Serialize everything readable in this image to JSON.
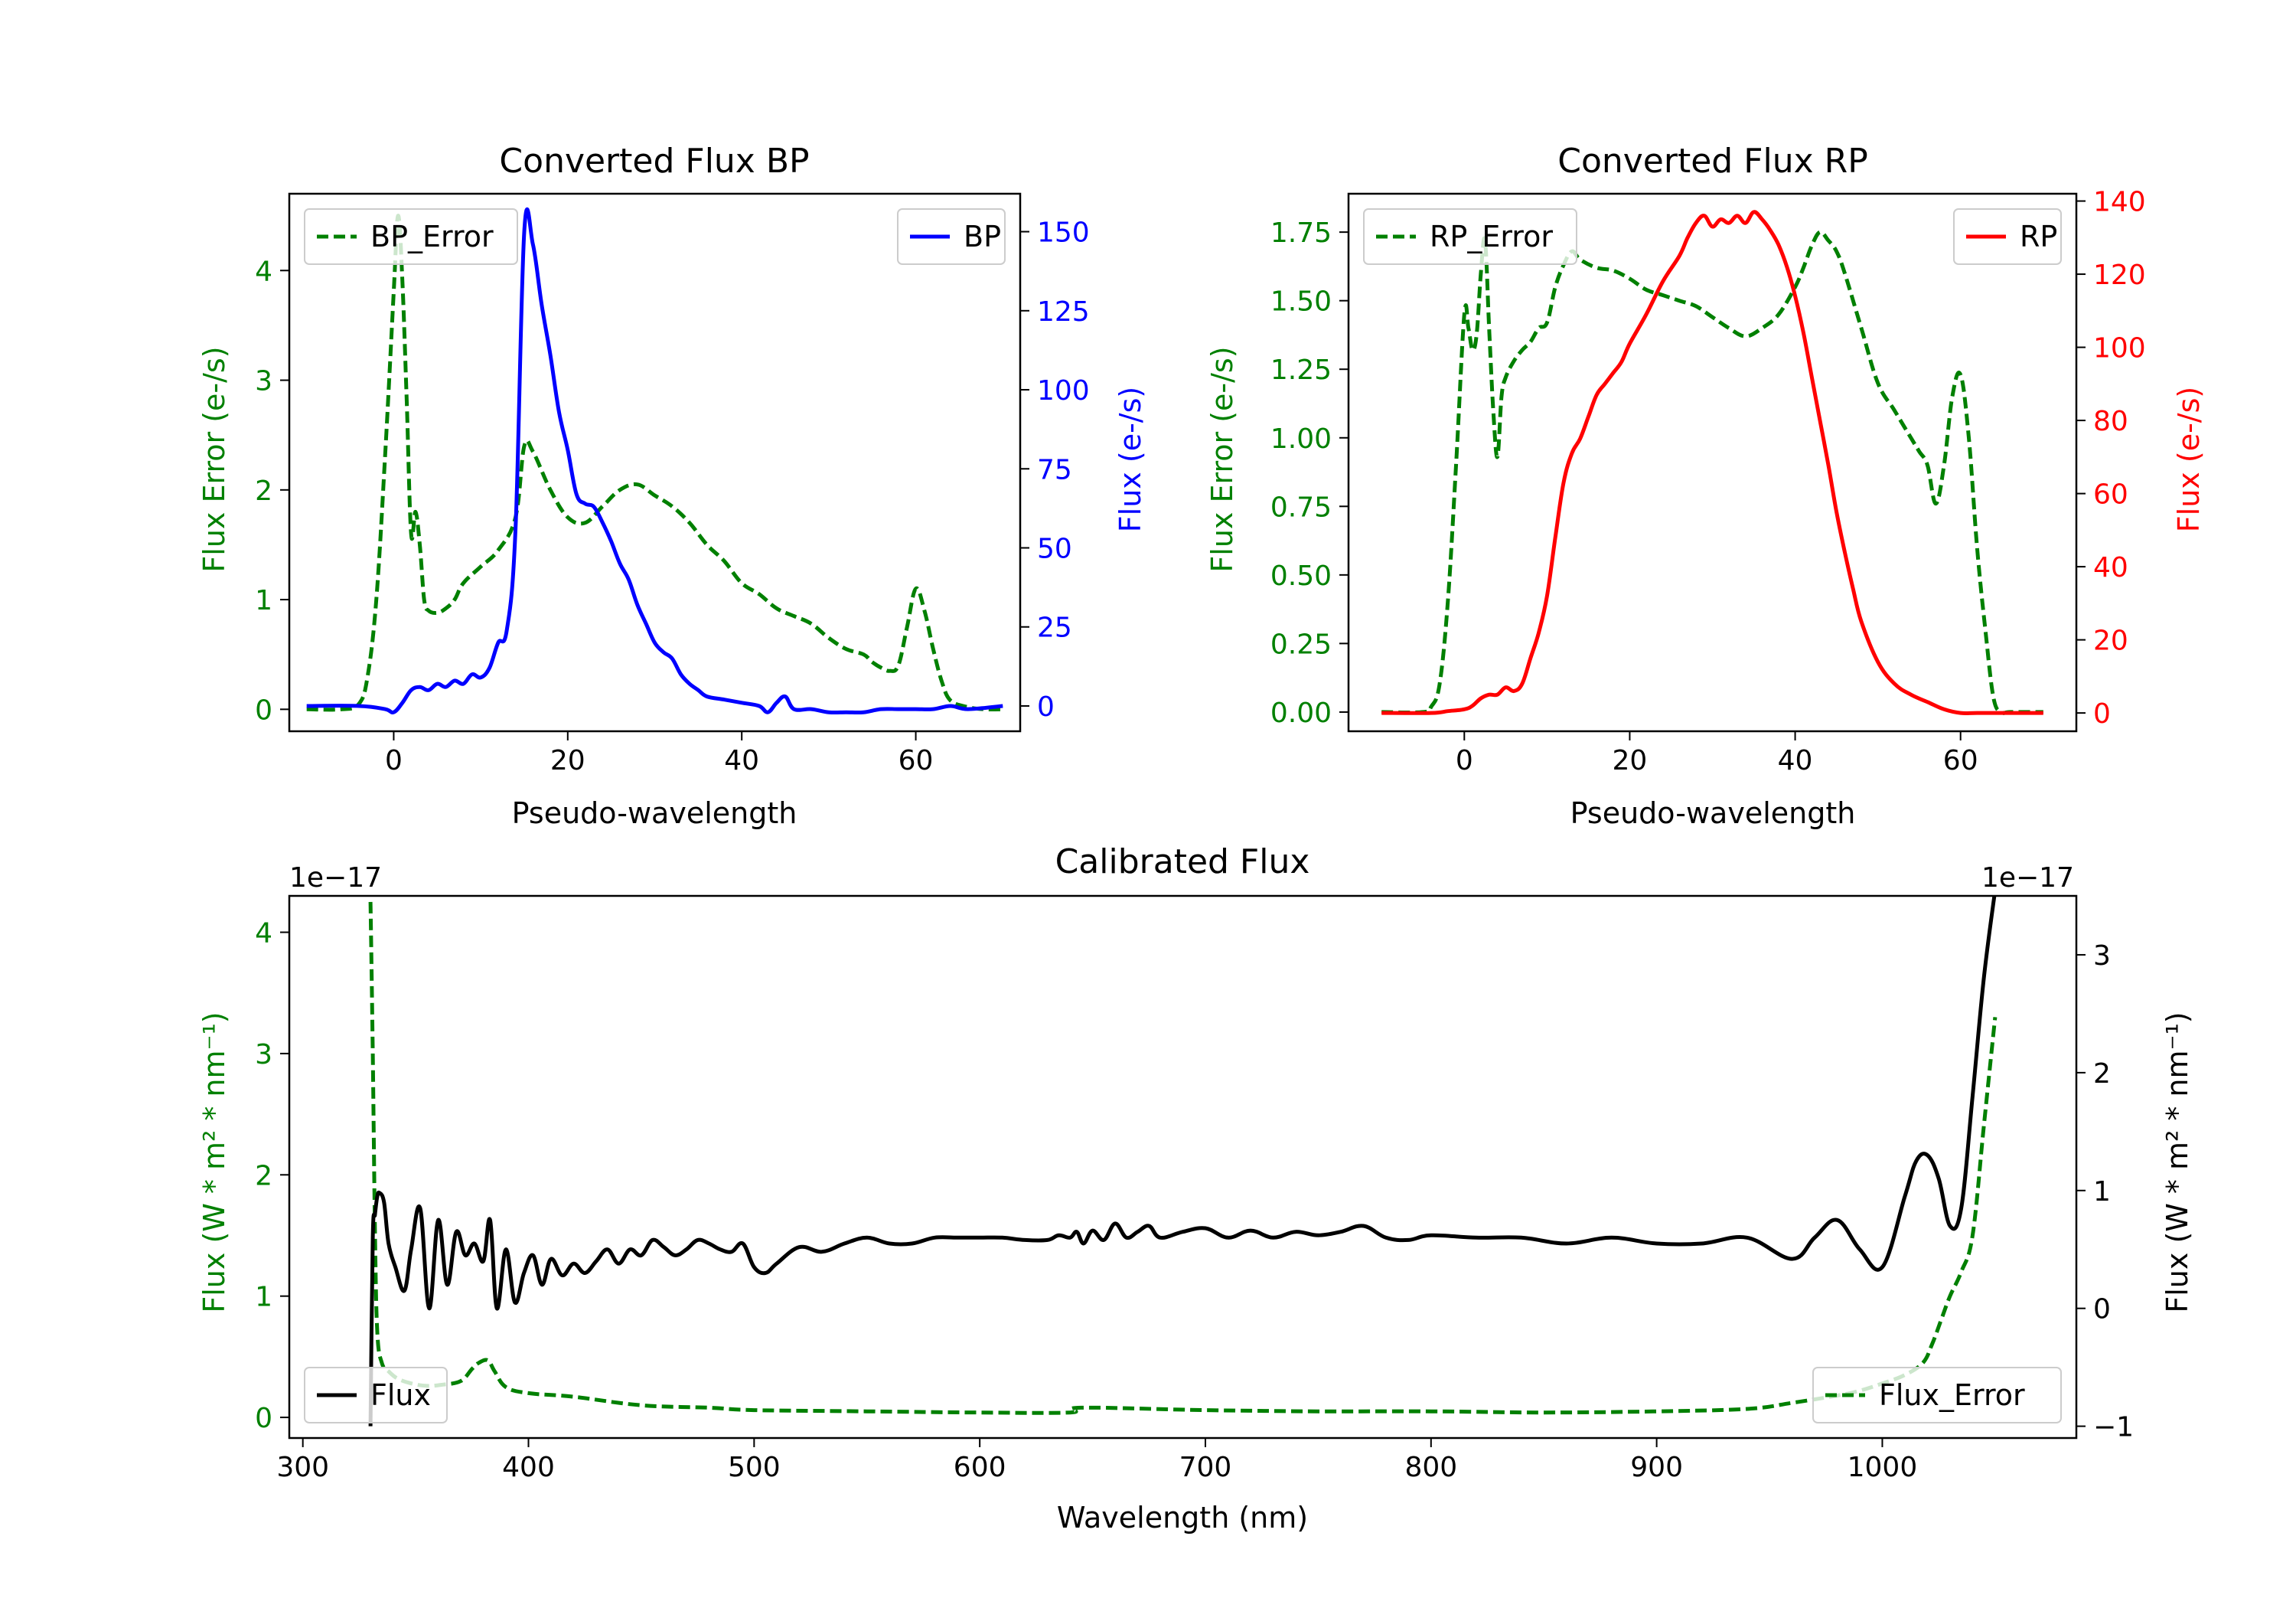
{
  "chart_data": [
    {
      "id": "bp",
      "type": "line",
      "title": "Converted Flux BP",
      "xlabel": "Pseudo-wavelength",
      "ylabel_left": "Flux Error (e-/s)",
      "ylabel_right": "Flux (e-/s)",
      "xlim": [
        -12,
        72
      ],
      "ylim_left": [
        -0.2,
        4.7
      ],
      "ylim_right": [
        -8,
        162
      ],
      "xticks": [
        0,
        20,
        40,
        60
      ],
      "yticks_left": [
        0,
        1,
        2,
        3,
        4
      ],
      "yticks_right": [
        0,
        25,
        50,
        75,
        100,
        125,
        150
      ],
      "left_axis_color": "#008000",
      "right_axis_color": "#0000ff",
      "legend_left": "BP_Error",
      "legend_right": "BP",
      "series": [
        {
          "name": "BP_Error",
          "axis": "left",
          "color": "#008000",
          "style": "dashed",
          "x": [
            -10,
            -6,
            -4,
            -3,
            -2,
            -1,
            0,
            0.5,
            1,
            1.5,
            2,
            2.5,
            3,
            3.5,
            4,
            5,
            6,
            7,
            8,
            10,
            12,
            14,
            15,
            16,
            18,
            20,
            22,
            24,
            26,
            28,
            30,
            32,
            34,
            36,
            38,
            40,
            42,
            44,
            46,
            48,
            50,
            52,
            54,
            55,
            56,
            57,
            58,
            59,
            60,
            61,
            62,
            63,
            64,
            66,
            68,
            70
          ],
          "y": [
            0,
            0,
            0.05,
            0.3,
            1.0,
            2.3,
            3.8,
            4.5,
            3.9,
            2.8,
            1.6,
            1.8,
            1.5,
            1.0,
            0.9,
            0.88,
            0.92,
            1.0,
            1.15,
            1.3,
            1.45,
            1.75,
            2.4,
            2.35,
            2.0,
            1.75,
            1.7,
            1.85,
            2.0,
            2.05,
            1.95,
            1.85,
            1.7,
            1.5,
            1.35,
            1.15,
            1.05,
            0.92,
            0.85,
            0.78,
            0.65,
            0.55,
            0.5,
            0.43,
            0.38,
            0.35,
            0.4,
            0.75,
            1.1,
            0.9,
            0.55,
            0.25,
            0.08,
            0.02,
            0.0,
            0.0
          ]
        },
        {
          "name": "BP",
          "axis": "right",
          "color": "#0000ff",
          "style": "solid",
          "x": [
            -10,
            -4,
            -1,
            0,
            1,
            2,
            3,
            4,
            5,
            6,
            7,
            8,
            9,
            10,
            11,
            12,
            13,
            14,
            15,
            16,
            17,
            18,
            19,
            20,
            21,
            22,
            23,
            24,
            25,
            26,
            27,
            28,
            29,
            30,
            31,
            32,
            33,
            34,
            35,
            36,
            38,
            40,
            42,
            43,
            44,
            45,
            46,
            48,
            50,
            52,
            54,
            56,
            58,
            60,
            62,
            64,
            66,
            70
          ],
          "y": [
            0,
            0,
            -1,
            -2,
            1,
            5,
            6,
            5,
            7,
            6,
            8,
            7,
            10,
            9,
            12,
            20,
            24,
            56,
            150,
            146,
            127,
            111,
            93,
            81,
            67,
            64,
            63,
            58,
            52,
            45,
            40,
            32,
            26,
            20,
            17,
            15,
            10,
            7,
            5,
            3,
            2,
            1,
            0,
            -2,
            1,
            3,
            -1,
            -1,
            -2,
            -2,
            -2,
            -1,
            -1,
            -1,
            -1,
            0,
            -1,
            0
          ]
        }
      ]
    },
    {
      "id": "rp",
      "type": "line",
      "title": "Converted Flux RP",
      "xlabel": "Pseudo-wavelength",
      "ylabel_left": "Flux Error (e-/s)",
      "ylabel_right": "Flux (e-/s)",
      "xlim": [
        -14,
        74
      ],
      "ylim_left": [
        -0.07,
        1.89
      ],
      "ylim_right": [
        -5,
        142
      ],
      "xticks": [
        0,
        20,
        40,
        60
      ],
      "yticks_left": [
        "0.00",
        "0.25",
        "0.50",
        "0.75",
        "1.00",
        "1.25",
        "1.50",
        "1.75"
      ],
      "yticks_right": [
        0,
        20,
        40,
        60,
        80,
        100,
        120,
        140
      ],
      "left_axis_color": "#008000",
      "right_axis_color": "#ff0000",
      "legend_left": "RP_Error",
      "legend_right": "RP",
      "series": [
        {
          "name": "RP_Error",
          "axis": "left",
          "color": "#008000",
          "style": "dashed",
          "x": [
            -10,
            -5,
            -4,
            -3,
            -2,
            -1,
            0,
            0.5,
            1,
            1.5,
            2,
            2.5,
            3,
            3.5,
            4,
            4.5,
            5,
            6,
            7,
            8,
            9,
            10,
            11,
            12,
            13,
            14,
            16,
            18,
            20,
            22,
            24,
            26,
            28,
            30,
            32,
            34,
            36,
            38,
            40,
            41,
            42,
            43,
            44,
            45,
            46,
            48,
            50,
            52,
            54,
            55,
            56,
            57,
            58,
            59,
            60,
            61,
            62,
            63,
            64,
            65,
            66,
            70
          ],
          "y": [
            0,
            0,
            0.02,
            0.1,
            0.4,
            0.9,
            1.45,
            1.4,
            1.32,
            1.38,
            1.6,
            1.72,
            1.4,
            1.1,
            0.93,
            1.15,
            1.22,
            1.28,
            1.32,
            1.35,
            1.4,
            1.42,
            1.55,
            1.63,
            1.68,
            1.65,
            1.62,
            1.61,
            1.58,
            1.54,
            1.52,
            1.5,
            1.48,
            1.44,
            1.4,
            1.37,
            1.4,
            1.45,
            1.55,
            1.62,
            1.7,
            1.75,
            1.72,
            1.68,
            1.6,
            1.4,
            1.2,
            1.1,
            1.0,
            0.95,
            0.9,
            0.76,
            0.9,
            1.15,
            1.23,
            1.0,
            0.6,
            0.3,
            0.05,
            0.0,
            0.0,
            0.0
          ]
        },
        {
          "name": "RP",
          "axis": "right",
          "color": "#ff0000",
          "style": "solid",
          "x": [
            -10,
            -4,
            -2,
            0,
            1,
            2,
            3,
            4,
            5,
            6,
            7,
            8,
            9,
            10,
            11,
            12,
            13,
            14,
            15,
            16,
            17,
            18,
            19,
            20,
            22,
            24,
            26,
            27,
            28,
            29,
            30,
            31,
            32,
            33,
            34,
            35,
            36,
            37,
            38,
            39,
            40,
            41,
            42,
            43,
            44,
            45,
            46,
            47,
            48,
            50,
            52,
            54,
            56,
            58,
            60,
            62,
            66,
            70
          ],
          "y": [
            0,
            0,
            0.5,
            1,
            2,
            4,
            5,
            5,
            7,
            6,
            8,
            15,
            22,
            32,
            48,
            63,
            71,
            75,
            81,
            87,
            90,
            93,
            96,
            101,
            109,
            118,
            125,
            130,
            134,
            136,
            133,
            135,
            134,
            136,
            134,
            137,
            135,
            132,
            128,
            122,
            114,
            104,
            92,
            80,
            68,
            55,
            44,
            34,
            25,
            14,
            8,
            5,
            3,
            1,
            0,
            0,
            0,
            0
          ]
        }
      ]
    },
    {
      "id": "calibrated",
      "type": "line",
      "title": "Calibrated Flux",
      "xlabel": "Wavelength (nm)",
      "ylabel_left": "Flux (W * m² * nm⁻¹)",
      "ylabel_right": "Flux (W * m² * nm⁻¹)",
      "offset_left": "1e−17",
      "offset_right": "1e−17",
      "xlim": [
        294,
        1086
      ],
      "ylim_left": [
        -0.17,
        4.3
      ],
      "ylim_right": [
        -1.1,
        3.5
      ],
      "xticks": [
        300,
        400,
        500,
        600,
        700,
        800,
        900,
        1000
      ],
      "yticks_left": [
        0,
        1,
        2,
        3,
        4
      ],
      "yticks_right": [
        -1,
        0,
        1,
        2,
        3
      ],
      "left_axis_color": "#008000",
      "right_axis_color": "#000000",
      "legend_left": "Flux",
      "legend_right": "Flux_Error",
      "series": [
        {
          "name": "Flux_Error",
          "axis": "left",
          "color": "#008000",
          "style": "dashed",
          "x": [
            330,
            331,
            332,
            333,
            335,
            338,
            342,
            348,
            355,
            362,
            370,
            375,
            378,
            382,
            385,
            390,
            400,
            420,
            450,
            480,
            500,
            550,
            600,
            640,
            645,
            700,
            750,
            800,
            850,
            900,
            940,
            960,
            980,
            990,
            1000,
            1010,
            1018,
            1022,
            1026,
            1030,
            1035,
            1040,
            1045,
            1050
          ],
          "y": [
            4.25,
            3.0,
            1.5,
            0.7,
            0.45,
            0.38,
            0.32,
            0.28,
            0.26,
            0.27,
            0.3,
            0.4,
            0.45,
            0.47,
            0.38,
            0.25,
            0.2,
            0.17,
            0.1,
            0.08,
            0.06,
            0.05,
            0.04,
            0.04,
            0.08,
            0.06,
            0.05,
            0.05,
            0.04,
            0.05,
            0.07,
            0.12,
            0.18,
            0.22,
            0.28,
            0.35,
            0.45,
            0.6,
            0.8,
            1.0,
            1.2,
            1.5,
            2.4,
            3.3
          ]
        },
        {
          "name": "Flux",
          "axis": "right",
          "color": "#000000",
          "style": "solid",
          "x": [
            330,
            331,
            332,
            333,
            334,
            336,
            338,
            341,
            345,
            348,
            352,
            356,
            360,
            364,
            368,
            372,
            376,
            380,
            383,
            386,
            390,
            394,
            398,
            402,
            406,
            410,
            415,
            420,
            425,
            430,
            435,
            440,
            445,
            450,
            455,
            460,
            465,
            470,
            475,
            480,
            485,
            490,
            495,
            500,
            505,
            510,
            520,
            530,
            540,
            550,
            560,
            570,
            580,
            590,
            600,
            610,
            620,
            630,
            635,
            640,
            643,
            646,
            650,
            655,
            660,
            665,
            670,
            675,
            680,
            690,
            700,
            710,
            720,
            730,
            740,
            750,
            760,
            770,
            780,
            790,
            800,
            820,
            840,
            860,
            880,
            900,
            920,
            940,
            960,
            970,
            980,
            990,
            1000,
            1010,
            1015,
            1020,
            1025,
            1030,
            1035,
            1040,
            1045,
            1050
          ],
          "y": [
            -1.0,
            0.6,
            0.8,
            0.95,
            0.98,
            0.9,
            0.55,
            0.35,
            0.15,
            0.5,
            0.85,
            0.0,
            0.75,
            0.2,
            0.65,
            0.45,
            0.55,
            0.4,
            0.75,
            0.0,
            0.5,
            0.05,
            0.3,
            0.45,
            0.2,
            0.42,
            0.28,
            0.38,
            0.3,
            0.4,
            0.5,
            0.38,
            0.5,
            0.45,
            0.58,
            0.52,
            0.45,
            0.5,
            0.58,
            0.55,
            0.5,
            0.48,
            0.55,
            0.35,
            0.3,
            0.38,
            0.52,
            0.48,
            0.55,
            0.6,
            0.55,
            0.55,
            0.6,
            0.6,
            0.6,
            0.6,
            0.58,
            0.58,
            0.62,
            0.6,
            0.65,
            0.55,
            0.66,
            0.58,
            0.72,
            0.6,
            0.65,
            0.7,
            0.6,
            0.65,
            0.68,
            0.6,
            0.66,
            0.6,
            0.65,
            0.62,
            0.65,
            0.7,
            0.6,
            0.58,
            0.62,
            0.6,
            0.6,
            0.55,
            0.6,
            0.55,
            0.55,
            0.6,
            0.42,
            0.6,
            0.75,
            0.5,
            0.35,
            0.95,
            1.25,
            1.3,
            1.1,
            0.7,
            0.85,
            1.8,
            2.8,
            3.55
          ]
        }
      ]
    }
  ]
}
